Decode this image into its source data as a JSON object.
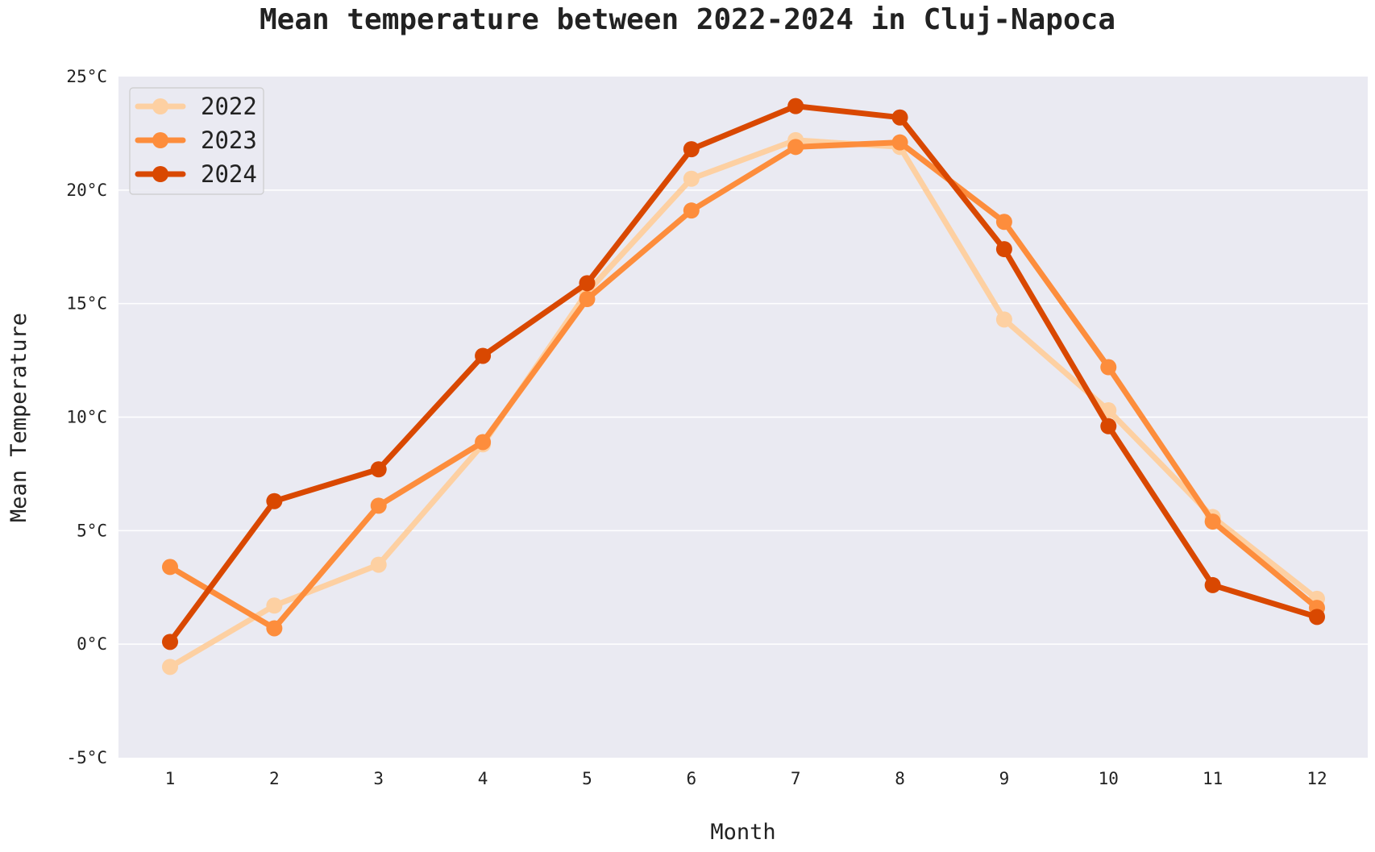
{
  "chart_data": {
    "type": "line",
    "title": "Mean temperature between 2022-2024 in Cluj-Napoca",
    "xlabel": "Month",
    "ylabel": "Mean Temperature",
    "x": [
      1,
      2,
      3,
      4,
      5,
      6,
      7,
      8,
      9,
      10,
      11,
      12
    ],
    "ylim": [
      -5,
      25
    ],
    "yticks": [
      -5,
      0,
      5,
      10,
      15,
      20,
      25
    ],
    "ytick_suffix": "°C",
    "grid": "horizontal",
    "legend_position": "top-left",
    "background_color": "#eaeaf2",
    "series": [
      {
        "name": "2022",
        "color": "#fdd0a2",
        "values": [
          -1.0,
          1.7,
          3.5,
          8.8,
          15.5,
          20.5,
          22.2,
          21.9,
          14.3,
          10.3,
          5.6,
          2.0
        ]
      },
      {
        "name": "2023",
        "color": "#fd8d3c",
        "values": [
          3.4,
          0.7,
          6.1,
          8.9,
          15.2,
          19.1,
          21.9,
          22.1,
          18.6,
          12.2,
          5.4,
          1.6
        ]
      },
      {
        "name": "2024",
        "color": "#d94801",
        "values": [
          0.1,
          6.3,
          7.7,
          12.7,
          15.9,
          21.8,
          23.7,
          23.2,
          17.4,
          9.6,
          2.6,
          1.2
        ]
      }
    ]
  }
}
